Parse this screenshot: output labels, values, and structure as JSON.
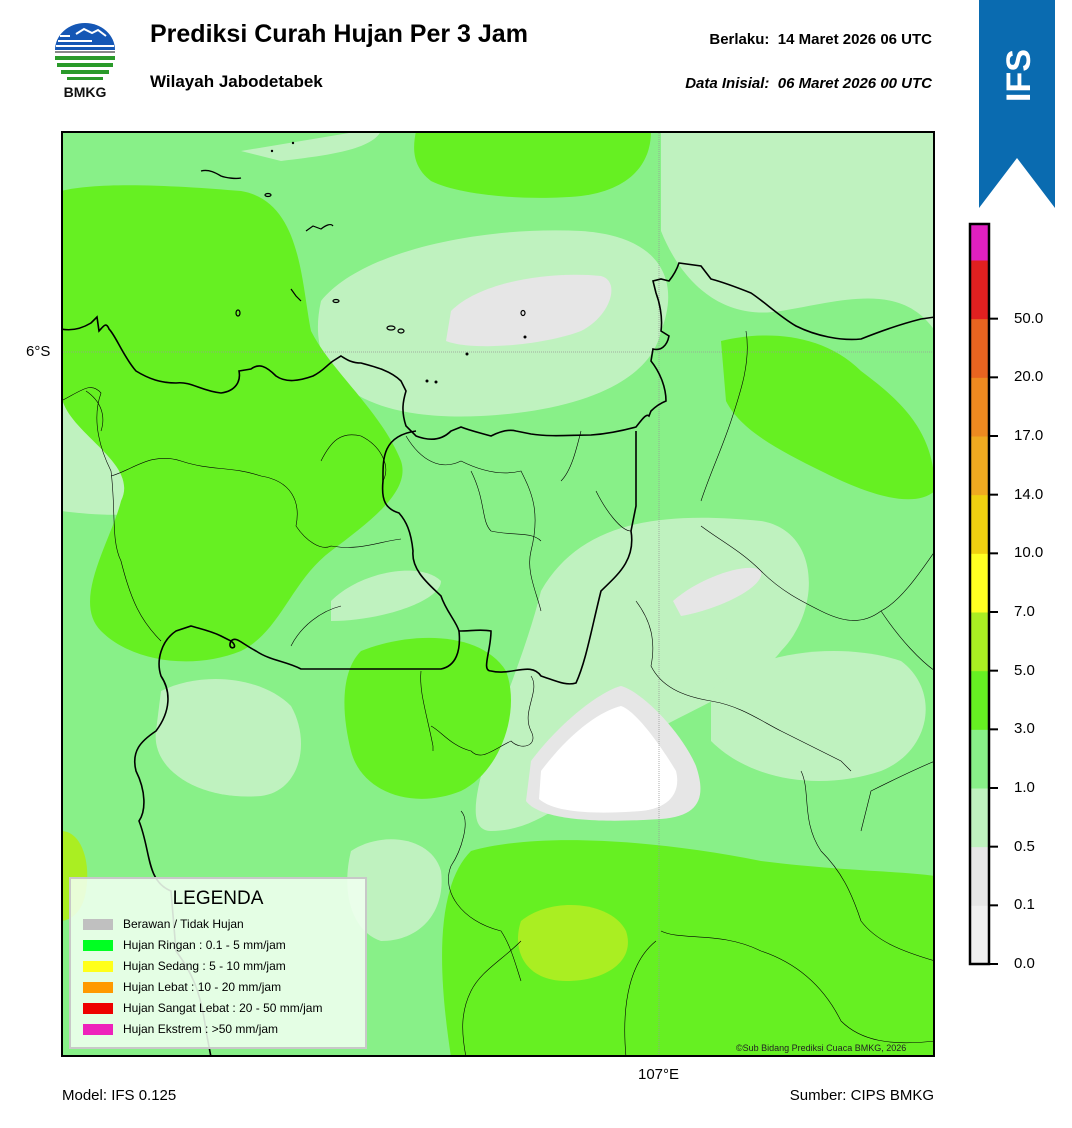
{
  "header": {
    "logo_text": "BMKG",
    "title": "Prediksi Curah Hujan Per 3 Jam",
    "subtitle": "Wilayah Jabodetabek",
    "valid_label": "Berlaku:",
    "valid_value": "14 Maret 2026 06 UTC",
    "init_label": "Data Inisial:",
    "init_value": "06 Maret 2026 00 UTC",
    "badge": "IFS"
  },
  "map": {
    "lat_label": "6°S",
    "lon_label": "107°E",
    "copyright": "©Sub Bidang Prediksi Cuaca BMKG, 2026"
  },
  "legend": {
    "title": "LEGENDA",
    "items": [
      {
        "label": "Berawan / Tidak Hujan",
        "color": "#c0c0c0"
      },
      {
        "label": "Hujan Ringan : 0.1 - 5 mm/jam",
        "color": "#00ff22"
      },
      {
        "label": "Hujan Sedang : 5 - 10 mm/jam",
        "color": "#ffff1a"
      },
      {
        "label": "Hujan Lebat : 10 - 20 mm/jam",
        "color": "#ff9900"
      },
      {
        "label": "Hujan Sangat Lebat : 20 - 50 mm/jam",
        "color": "#ee0000"
      },
      {
        "label": "Hujan Ekstrem : >50 mm/jam",
        "color": "#ee22bb"
      }
    ]
  },
  "colorbar": {
    "ticks": [
      "0.0",
      "0.1",
      "0.5",
      "1.0",
      "3.0",
      "5.0",
      "7.0",
      "10.0",
      "14.0",
      "17.0",
      "20.0",
      "50.0"
    ],
    "colors": [
      "#f0f0f0",
      "#e6e6e6",
      "#bff2bf",
      "#88f088",
      "#66f022",
      "#aaee22",
      "#ffff22",
      "#f0d010",
      "#f0aa20",
      "#ee8a20",
      "#e86420",
      "#e02020",
      "#e020c0"
    ]
  },
  "footer": {
    "model": "Model: IFS 0.125",
    "source": "Sumber: CIPS BMKG"
  },
  "colors": {
    "ribbon": "#0a6bb0",
    "rain_light": "#88f088",
    "rain_pale": "#bff2bf",
    "rain_bright": "#66f022"
  }
}
